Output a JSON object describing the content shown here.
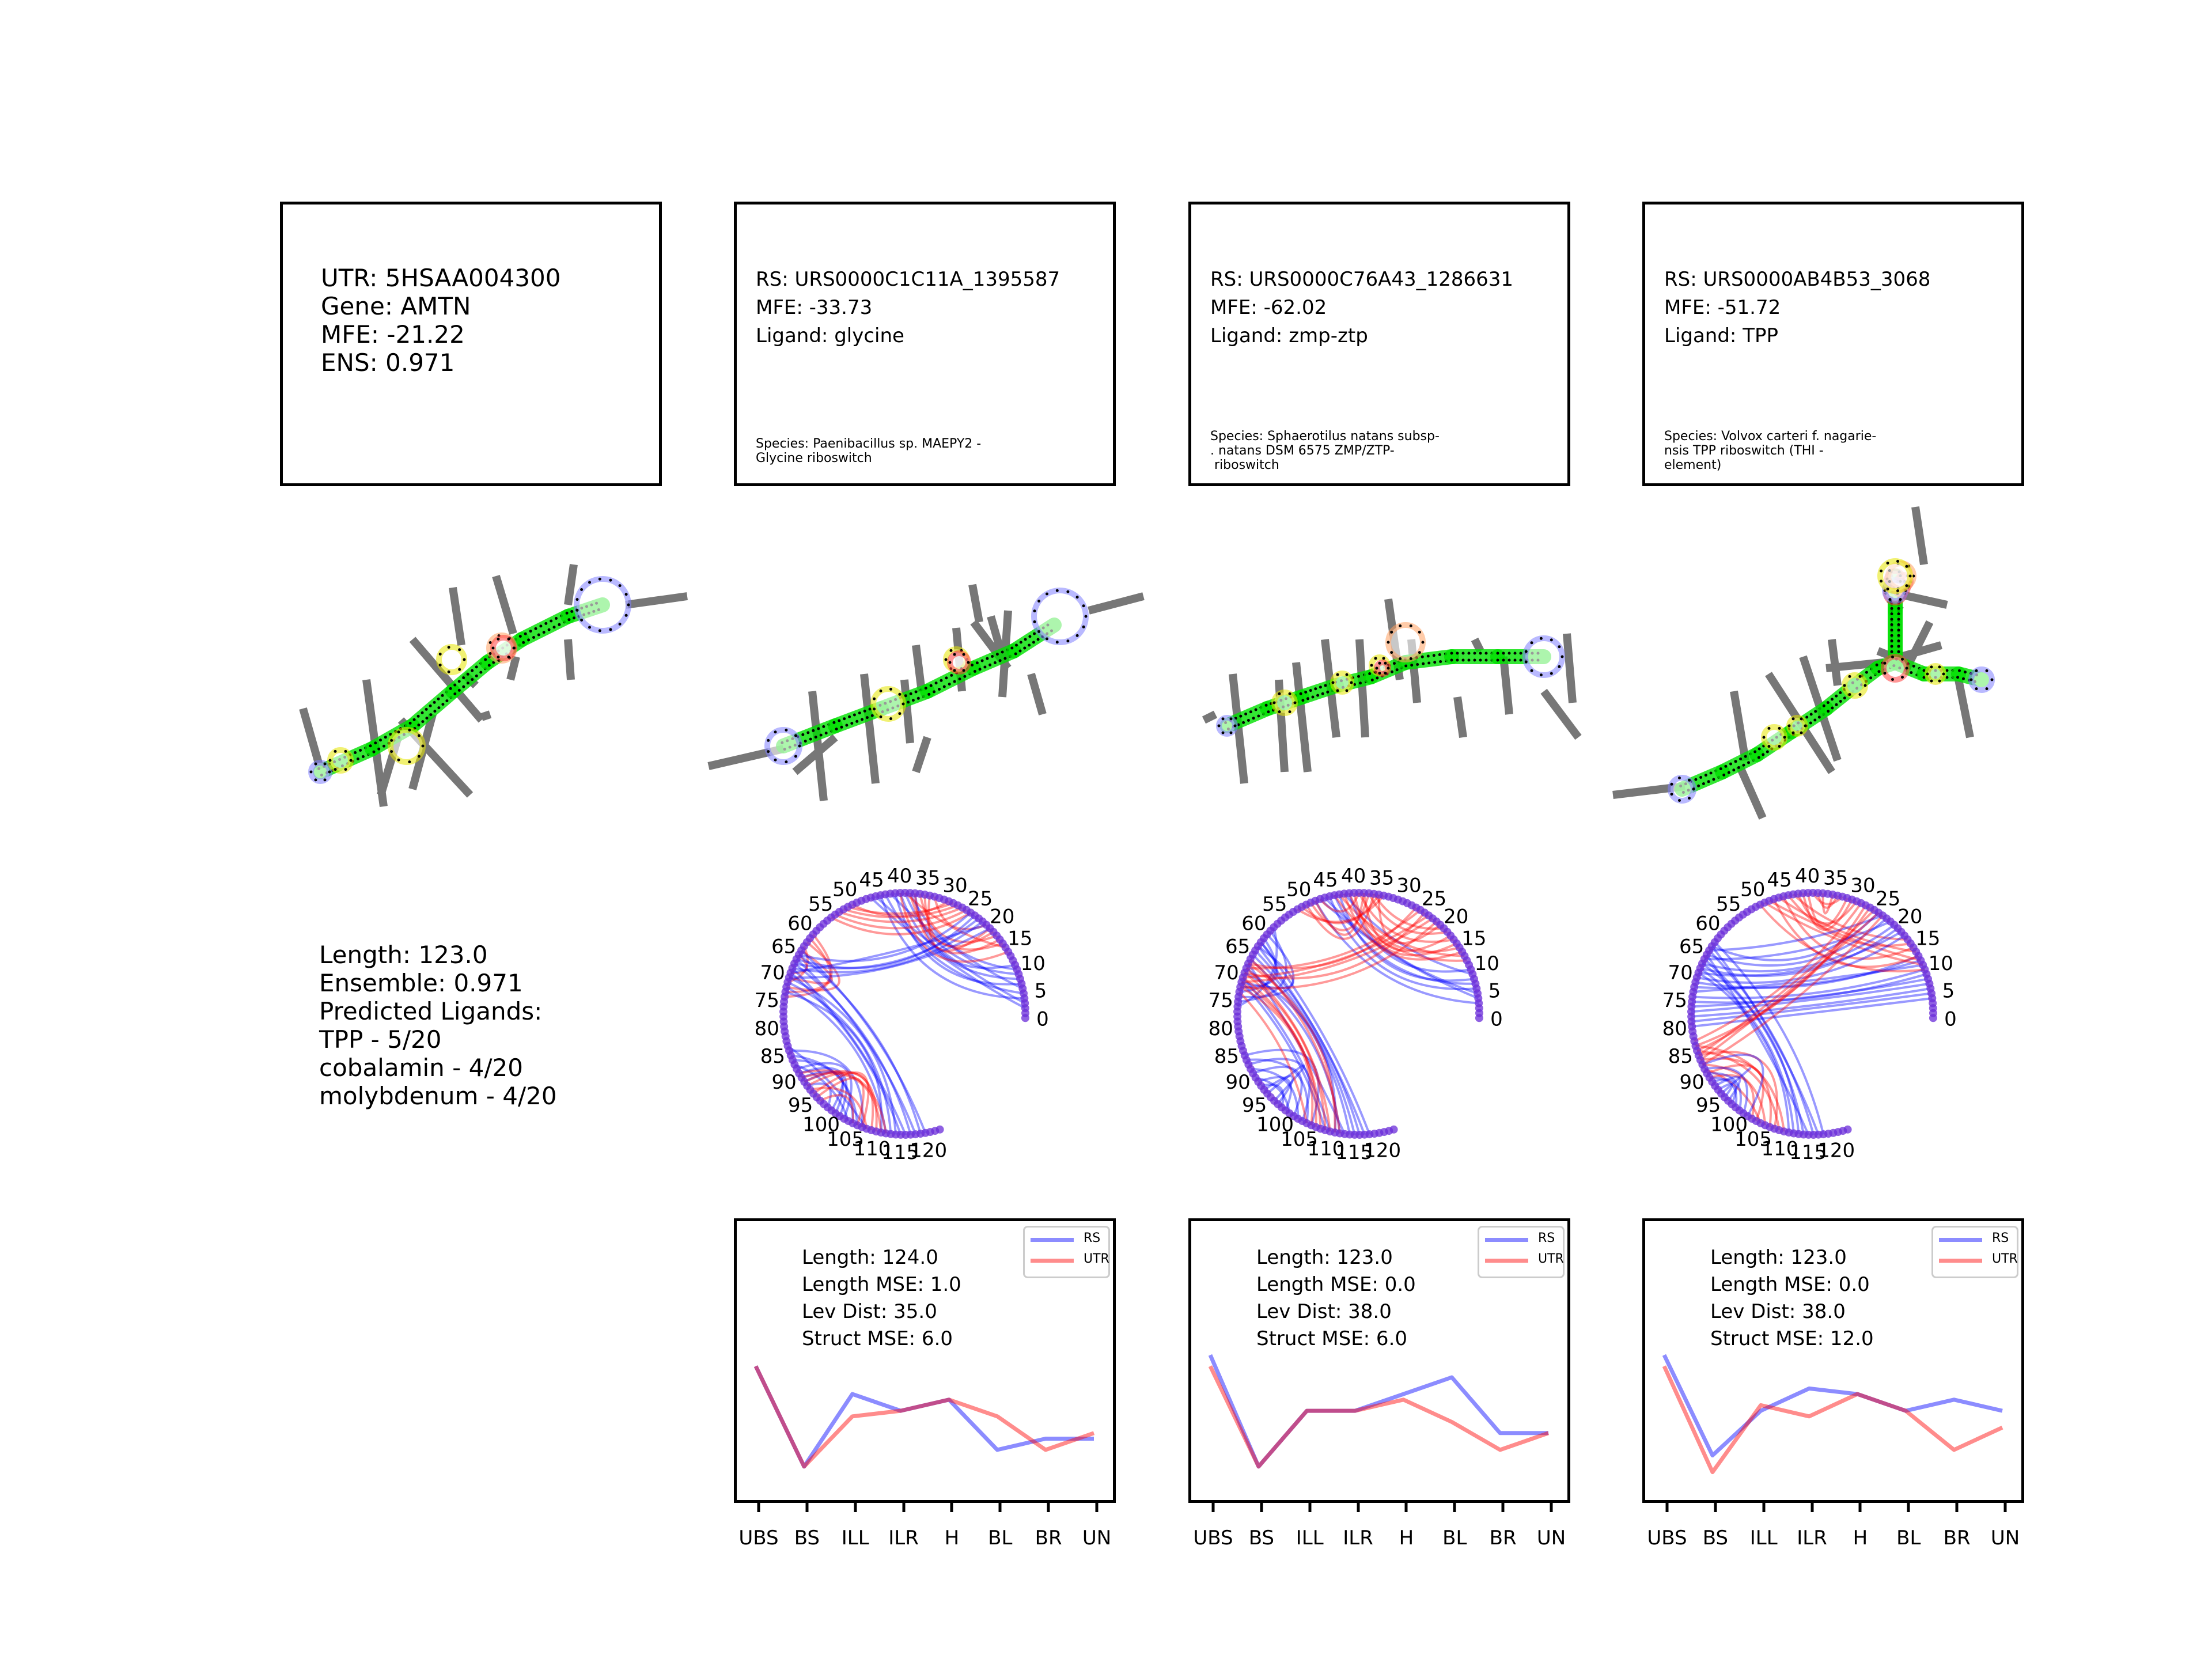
{
  "utr": {
    "id_line": "UTR: 5HSAA004300",
    "gene_line": "Gene: AMTN",
    "mfe_line": "MFE: -21.22",
    "ens_line": "ENS: 0.971",
    "summary": {
      "length": "Length: 123.0",
      "ensemble": "Ensemble: 0.971",
      "header": "Predicted Ligands:",
      "ligand1": "TPP - 5/20",
      "ligand2": "cobalamin - 4/20",
      "ligand3": "molybdenum - 4/20"
    }
  },
  "riboswitches": [
    {
      "rs_line": "RS: URS0000C1C11A_1395587",
      "mfe_line": "MFE: -33.73",
      "ligand_line": "Ligand: glycine",
      "species_line1": "Species: Paenibacillus sp. MAEPY2 -",
      "species_line2": "Glycine riboswitch",
      "species_line3": "",
      "stats": {
        "length": "Length: 124.0",
        "length_mse": "Length MSE: 1.0",
        "lev": "Lev Dist: 35.0",
        "struct": "Struct MSE: 6.0"
      }
    },
    {
      "rs_line": "RS: URS0000C76A43_1286631",
      "mfe_line": "MFE: -62.02",
      "ligand_line": "Ligand: zmp-ztp",
      "species_line1": "Species: Sphaerotilus natans subsp-",
      "species_line2": ". natans DSM 6575 ZMP/ZTP-",
      "species_line3": " riboswitch",
      "stats": {
        "length": "Length: 123.0",
        "length_mse": "Length MSE: 0.0",
        "lev": "Lev Dist: 38.0",
        "struct": "Struct MSE: 6.0"
      }
    },
    {
      "rs_line": "RS: URS0000AB4B53_3068",
      "mfe_line": "MFE: -51.72",
      "ligand_line": "Ligand: TPP",
      "species_line1": "Species: Volvox carteri f. nagarie-",
      "species_line2": "nsis TPP riboswitch (THI -",
      "species_line3": "element)",
      "stats": {
        "length": "Length: 123.0",
        "length_mse": "Length MSE: 0.0",
        "lev": "Lev Dist: 38.0",
        "struct": "Struct MSE: 12.0"
      }
    }
  ],
  "legend": {
    "rs_label": "RS",
    "utr_label": "UTR"
  },
  "colors": {
    "rs": "#0000ff",
    "utr": "#ff0000",
    "stem": "#00e000",
    "stem_nt": "#000000",
    "hairpin": "#8080ff",
    "internal": "#e6e600",
    "multi": "#ff4040",
    "bulge": "#ffa060",
    "sticks": "#777777",
    "arc_base": "#6a2cd8"
  },
  "chord_ticks": [
    "0",
    "5",
    "10",
    "15",
    "20",
    "25",
    "30",
    "35",
    "40",
    "45",
    "50",
    "55",
    "60",
    "65",
    "70",
    "75",
    "80",
    "85",
    "90",
    "95",
    "100",
    "105",
    "110",
    "115",
    "120"
  ],
  "chart_data": [
    {
      "type": "line",
      "categories": [
        "UBS",
        "BS",
        "ILL",
        "ILR",
        "H",
        "BL",
        "BR",
        "UN"
      ],
      "series": [
        {
          "name": "RS",
          "values": [
            12.0,
            3.0,
            9.5,
            8.0,
            9.0,
            4.5,
            5.5,
            5.5
          ]
        },
        {
          "name": "UTR",
          "values": [
            12.0,
            3.0,
            7.5,
            8.0,
            9.0,
            7.5,
            4.5,
            6.0
          ]
        }
      ],
      "ylim": [
        0,
        25
      ]
    },
    {
      "type": "line",
      "categories": [
        "UBS",
        "BS",
        "ILL",
        "ILR",
        "H",
        "BL",
        "BR",
        "UN"
      ],
      "series": [
        {
          "name": "RS",
          "values": [
            13.0,
            3.0,
            8.0,
            8.0,
            9.5,
            11.0,
            6.0,
            6.0
          ]
        },
        {
          "name": "UTR",
          "values": [
            12.0,
            3.0,
            8.0,
            8.0,
            9.0,
            7.0,
            4.5,
            6.0
          ]
        }
      ],
      "ylim": [
        0,
        25
      ]
    },
    {
      "type": "line",
      "categories": [
        "UBS",
        "BS",
        "ILL",
        "ILR",
        "H",
        "BL",
        "BR",
        "UN"
      ],
      "series": [
        {
          "name": "RS",
          "values": [
            13.0,
            4.0,
            8.0,
            10.0,
            9.5,
            8.0,
            9.0,
            8.0
          ]
        },
        {
          "name": "UTR",
          "values": [
            12.0,
            2.5,
            8.5,
            7.5,
            9.5,
            8.0,
            4.5,
            6.5
          ]
        }
      ],
      "ylim": [
        0,
        25
      ]
    }
  ]
}
